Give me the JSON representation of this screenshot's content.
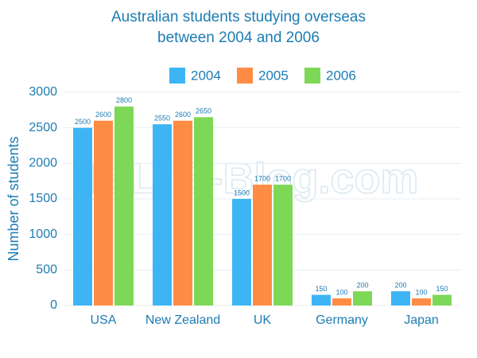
{
  "chart_data": {
    "type": "bar",
    "title": [
      "Australian students studying overseas",
      "between 2004 and 2006"
    ],
    "y_label": "Number of students",
    "watermark": "IELTS-Blog.com",
    "categories": [
      "USA",
      "New Zealand",
      "UK",
      "Germany",
      "Japan"
    ],
    "series": [
      {
        "name": "2004",
        "color": "#3db5f5",
        "values": [
          2500,
          2550,
          1500,
          150,
          200
        ]
      },
      {
        "name": "2005",
        "color": "#ff8c44",
        "values": [
          2600,
          2600,
          1700,
          100,
          100
        ]
      },
      {
        "name": "2006",
        "color": "#7ed858",
        "values": [
          2800,
          2650,
          1700,
          200,
          150
        ]
      }
    ],
    "ylim": [
      0,
      3000
    ],
    "yticks": [
      0,
      500,
      1000,
      1500,
      2000,
      2500,
      3000
    ],
    "grid": true,
    "legend": "top"
  }
}
